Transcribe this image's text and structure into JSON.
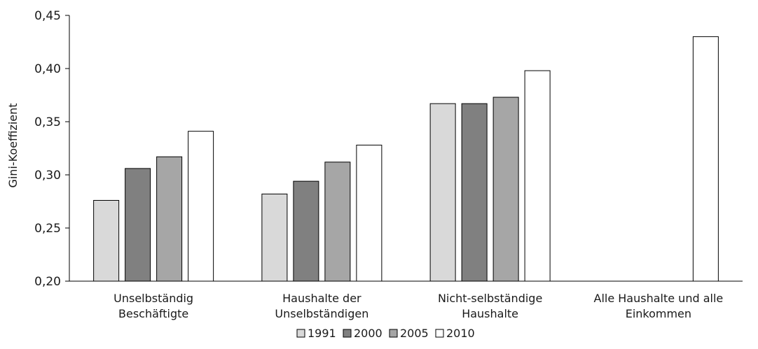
{
  "chart_data": {
    "type": "bar",
    "ylabel": "Gini-Koeffizient",
    "ylim": [
      0.2,
      0.45
    ],
    "yticks": [
      0.2,
      0.25,
      0.3,
      0.35,
      0.4,
      0.45
    ],
    "ytick_labels": [
      "0,20",
      "0,25",
      "0,30",
      "0,35",
      "0,40",
      "0,45"
    ],
    "categories": [
      [
        "Unselbständig",
        "Beschäftigte"
      ],
      [
        "Haushalte der",
        "Unselbständigen"
      ],
      [
        "Nicht-selbständige",
        "Haushalte"
      ],
      [
        "Alle Haushalte und alle",
        "Einkommen"
      ]
    ],
    "series": [
      {
        "name": "1991",
        "color": "#d9d9d9",
        "values": [
          0.276,
          0.282,
          0.367,
          null
        ]
      },
      {
        "name": "2000",
        "color": "#808080",
        "values": [
          0.306,
          0.294,
          0.367,
          null
        ]
      },
      {
        "name": "2005",
        "color": "#a6a6a6",
        "values": [
          0.317,
          0.312,
          0.373,
          null
        ]
      },
      {
        "name": "2010",
        "color": "#ffffff",
        "values": [
          0.341,
          0.328,
          0.398,
          0.43
        ]
      }
    ],
    "grid": false,
    "legend_position": "bottom"
  }
}
